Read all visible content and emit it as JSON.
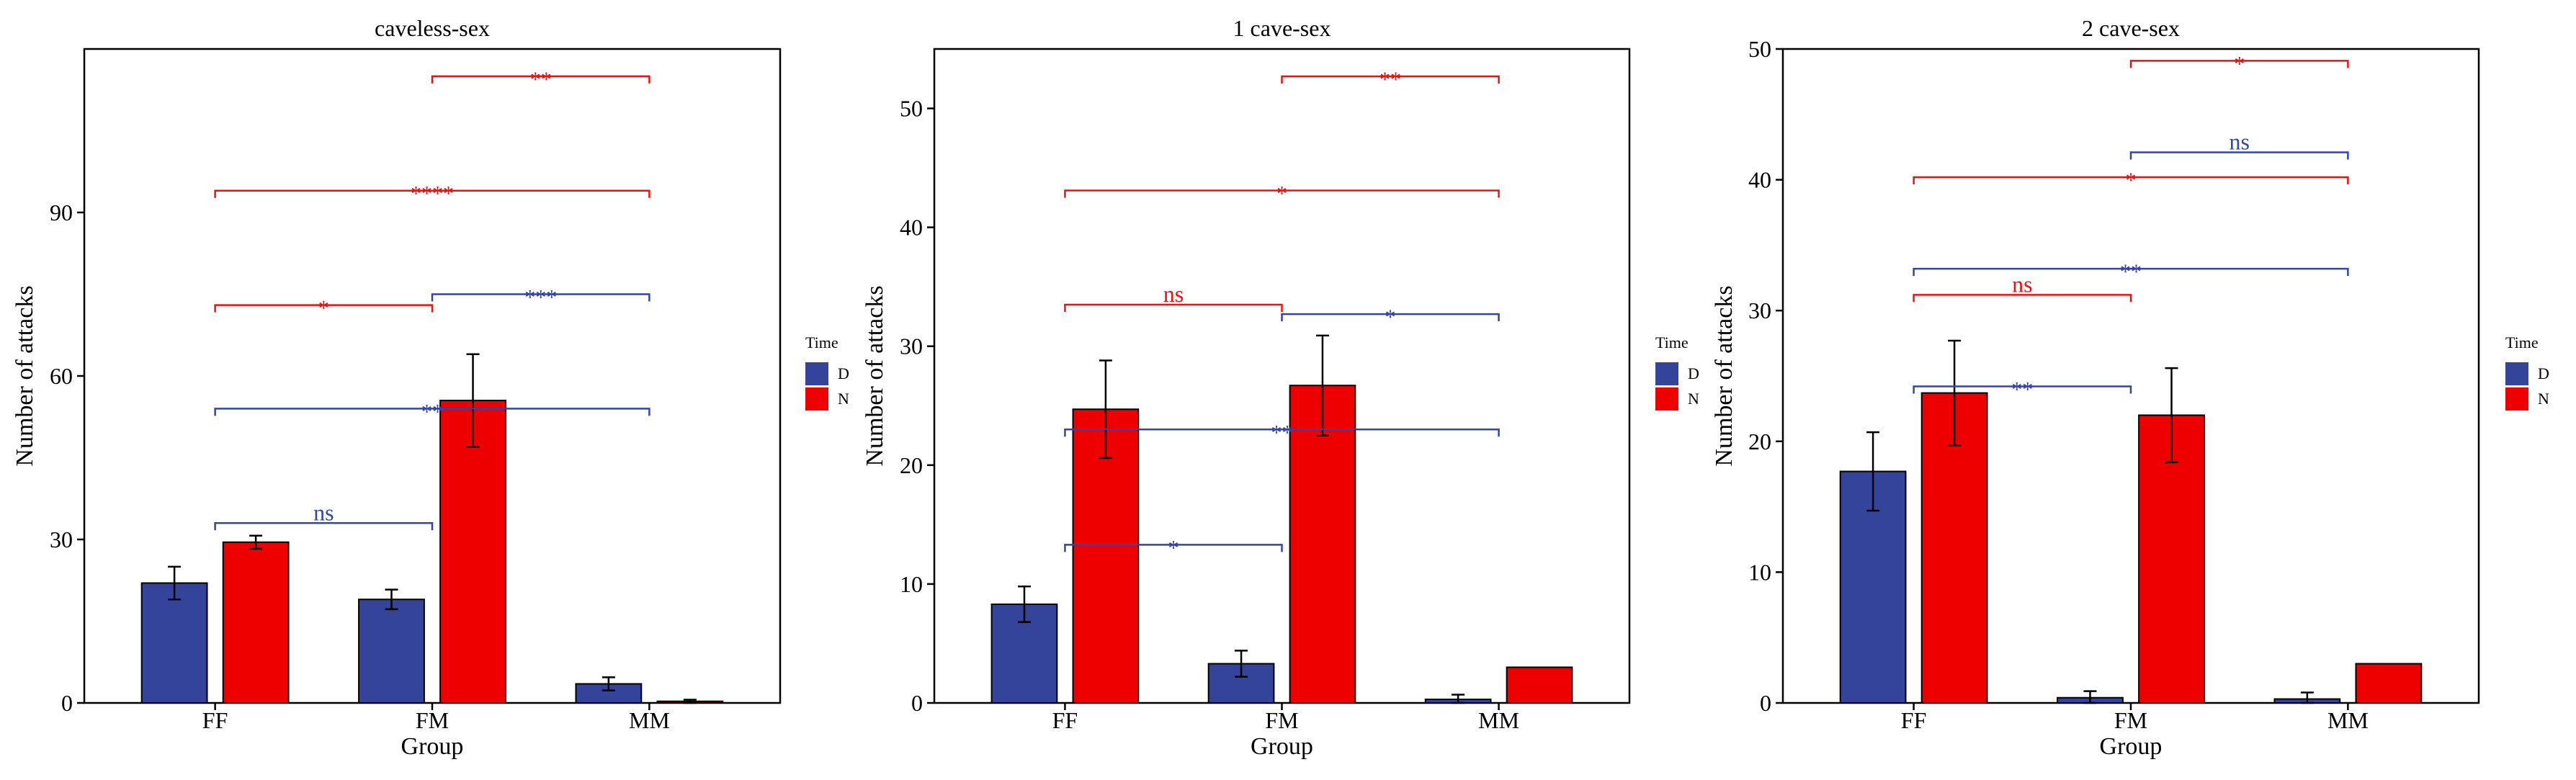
{
  "legend": {
    "title": "Time",
    "entries": [
      "D",
      "N"
    ]
  },
  "colors": {
    "D": "#33449A",
    "N": "#EE0000",
    "sig_D": "#3344AA",
    "sig_N": "#EE1111",
    "bar_stroke": "#000000",
    "frame": "#000000"
  },
  "chart_data": [
    {
      "type": "bar",
      "title": "caveless-sex",
      "xlabel": "Group",
      "ylabel": "Number of attacks",
      "categories": [
        "FF",
        "FM",
        "MM"
      ],
      "series": [
        {
          "name": "D",
          "values": [
            22,
            19,
            3.5
          ],
          "errors": [
            3,
            1.8,
            1.2
          ]
        },
        {
          "name": "N",
          "values": [
            29.5,
            55.5,
            0.3
          ],
          "errors": [
            1.2,
            8.5,
            0.3
          ]
        }
      ],
      "ylim": [
        0,
        120
      ],
      "yticks": [
        0,
        30,
        60,
        90
      ],
      "grid": false,
      "significance": [
        {
          "from": 1,
          "to": 2,
          "level": 115,
          "label": "**",
          "series": "N"
        },
        {
          "from": 0,
          "to": 2,
          "level": 94,
          "label": "****",
          "series": "N"
        },
        {
          "from": 0,
          "to": 1,
          "level": 73,
          "label": "*",
          "series": "N"
        },
        {
          "from": 1,
          "to": 2,
          "level": 75,
          "label": "***",
          "series": "D"
        },
        {
          "from": 0,
          "to": 2,
          "level": 54,
          "label": "**",
          "series": "D"
        },
        {
          "from": 0,
          "to": 1,
          "level": 33,
          "label": "ns",
          "series": "D"
        }
      ]
    },
    {
      "type": "bar",
      "title": "1 cave-sex",
      "xlabel": "Group",
      "ylabel": "Number of attacks",
      "categories": [
        "FF",
        "FM",
        "MM"
      ],
      "series": [
        {
          "name": "D",
          "values": [
            8.3,
            3.3,
            0.3
          ],
          "errors": [
            1.5,
            1.1,
            0.4
          ]
        },
        {
          "name": "N",
          "values": [
            24.7,
            26.7,
            3.0
          ],
          "errors": [
            4.1,
            4.2,
            0
          ]
        }
      ],
      "ylim": [
        0,
        55
      ],
      "yticks": [
        0,
        10,
        20,
        30,
        40,
        50
      ],
      "grid": false,
      "significance": [
        {
          "from": 1,
          "to": 2,
          "level": 52.7,
          "label": "**",
          "series": "N"
        },
        {
          "from": 0,
          "to": 2,
          "level": 43.1,
          "label": "*",
          "series": "N"
        },
        {
          "from": 0,
          "to": 1,
          "level": 33.5,
          "label": "ns",
          "series": "N"
        },
        {
          "from": 1,
          "to": 2,
          "level": 32.7,
          "label": "*",
          "series": "D"
        },
        {
          "from": 0,
          "to": 2,
          "level": 23.0,
          "label": "**",
          "series": "D"
        },
        {
          "from": 0,
          "to": 1,
          "level": 13.3,
          "label": "*",
          "series": "D"
        }
      ]
    },
    {
      "type": "bar",
      "title": "2 cave-sex",
      "xlabel": "Group",
      "ylabel": "Number of attacks",
      "categories": [
        "FF",
        "FM",
        "MM"
      ],
      "series": [
        {
          "name": "D",
          "values": [
            17.7,
            0.4,
            0.3
          ],
          "errors": [
            3,
            0.5,
            0.5
          ]
        },
        {
          "name": "N",
          "values": [
            23.7,
            22.0,
            3.0
          ],
          "errors": [
            4,
            3.6,
            0
          ]
        }
      ],
      "ylim": [
        0,
        50
      ],
      "yticks": [
        0,
        10,
        20,
        30,
        40,
        50
      ],
      "grid": false,
      "significance": [
        {
          "from": 1,
          "to": 2,
          "level": 49.1,
          "label": "*",
          "series": "N"
        },
        {
          "from": 1,
          "to": 2,
          "level": 42.1,
          "label": "ns",
          "series": "D"
        },
        {
          "from": 0,
          "to": 2,
          "level": 40.2,
          "label": "*",
          "series": "N"
        },
        {
          "from": 0,
          "to": 2,
          "level": 33.2,
          "label": "**",
          "series": "D"
        },
        {
          "from": 0,
          "to": 1,
          "level": 31.2,
          "label": "ns",
          "series": "N"
        },
        {
          "from": 0,
          "to": 1,
          "level": 24.2,
          "label": "**",
          "series": "D"
        }
      ]
    }
  ]
}
